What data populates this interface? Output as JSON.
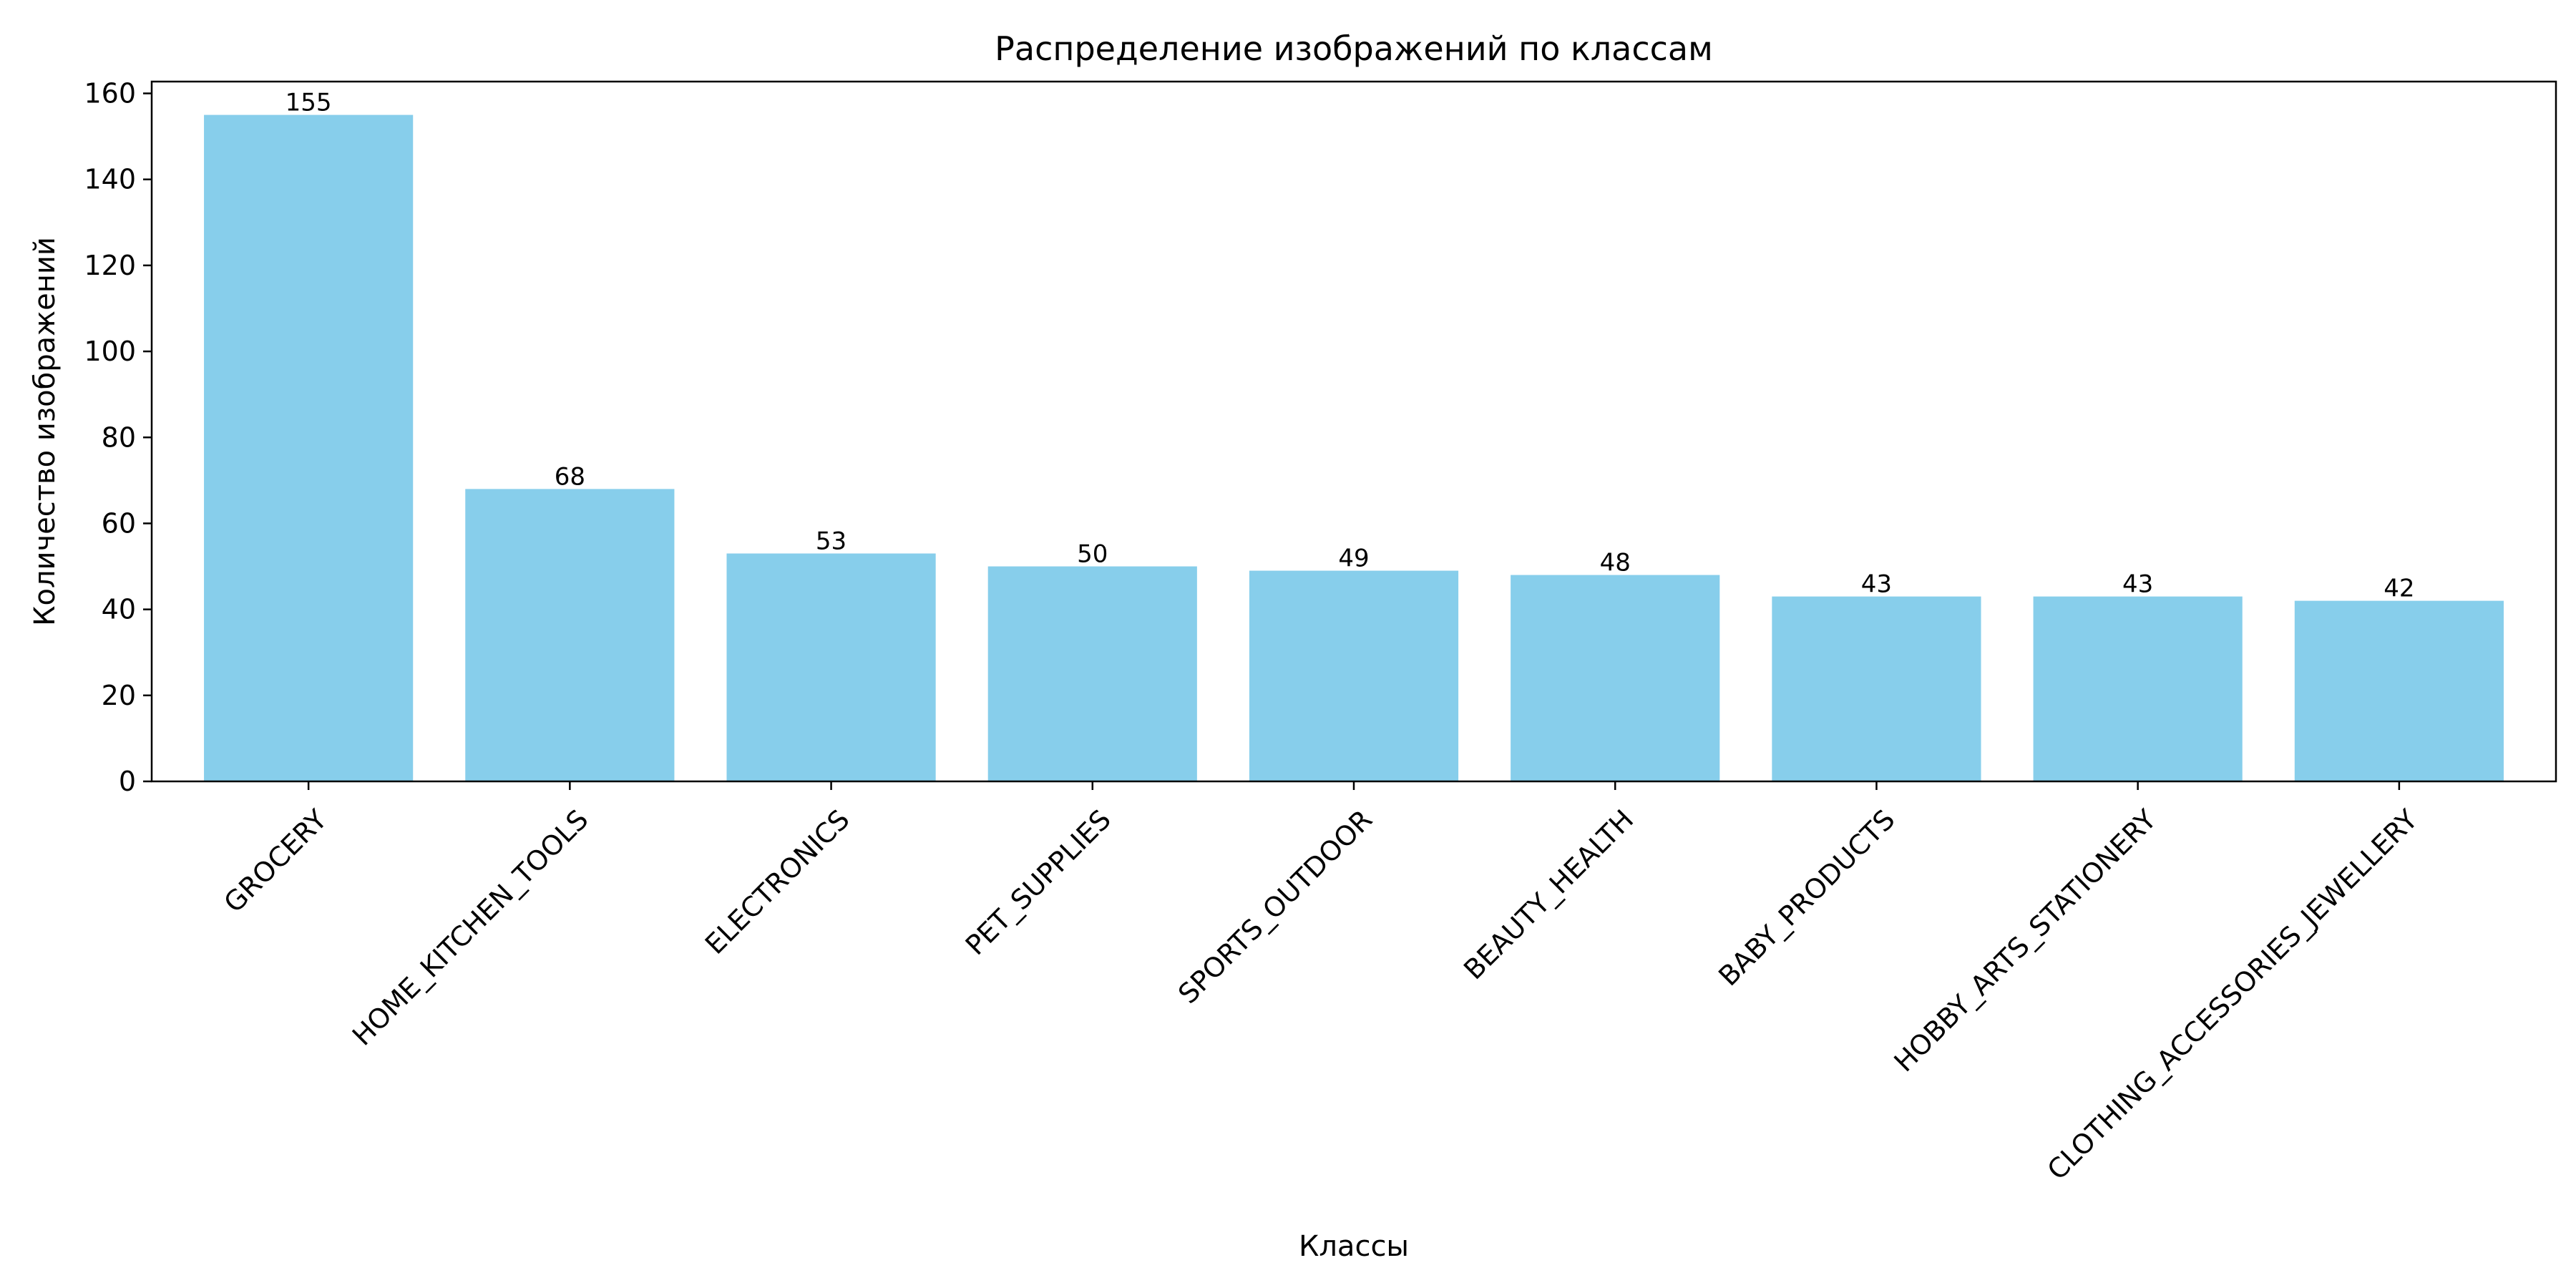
{
  "chart_data": {
    "type": "bar",
    "title": "Распределение изображений по классам",
    "xlabel": "Классы",
    "ylabel": "Количество изображений",
    "categories": [
      "GROCERY",
      "HOME_KITCHEN_TOOLS",
      "ELECTRONICS",
      "PET_SUPPLIES",
      "SPORTS_OUTDOOR",
      "BEAUTY_HEALTH",
      "BABY_PRODUCTS",
      "HOBBY_ARTS_STATIONERY",
      "CLOTHING_ACCESSORIES_JEWELLERY"
    ],
    "values": [
      155,
      68,
      53,
      50,
      49,
      48,
      43,
      43,
      42
    ],
    "data_labels": [
      "155",
      "68",
      "53",
      "50",
      "49",
      "48",
      "43",
      "43",
      "42"
    ],
    "ylim": [
      0,
      162.75
    ],
    "yticks": [
      0,
      20,
      40,
      60,
      80,
      100,
      120,
      140,
      160
    ],
    "ytick_labels": [
      "0",
      "20",
      "40",
      "60",
      "80",
      "100",
      "120",
      "140",
      "160"
    ],
    "bar_color": "#87ceeb",
    "grid": false,
    "legend": "none"
  }
}
